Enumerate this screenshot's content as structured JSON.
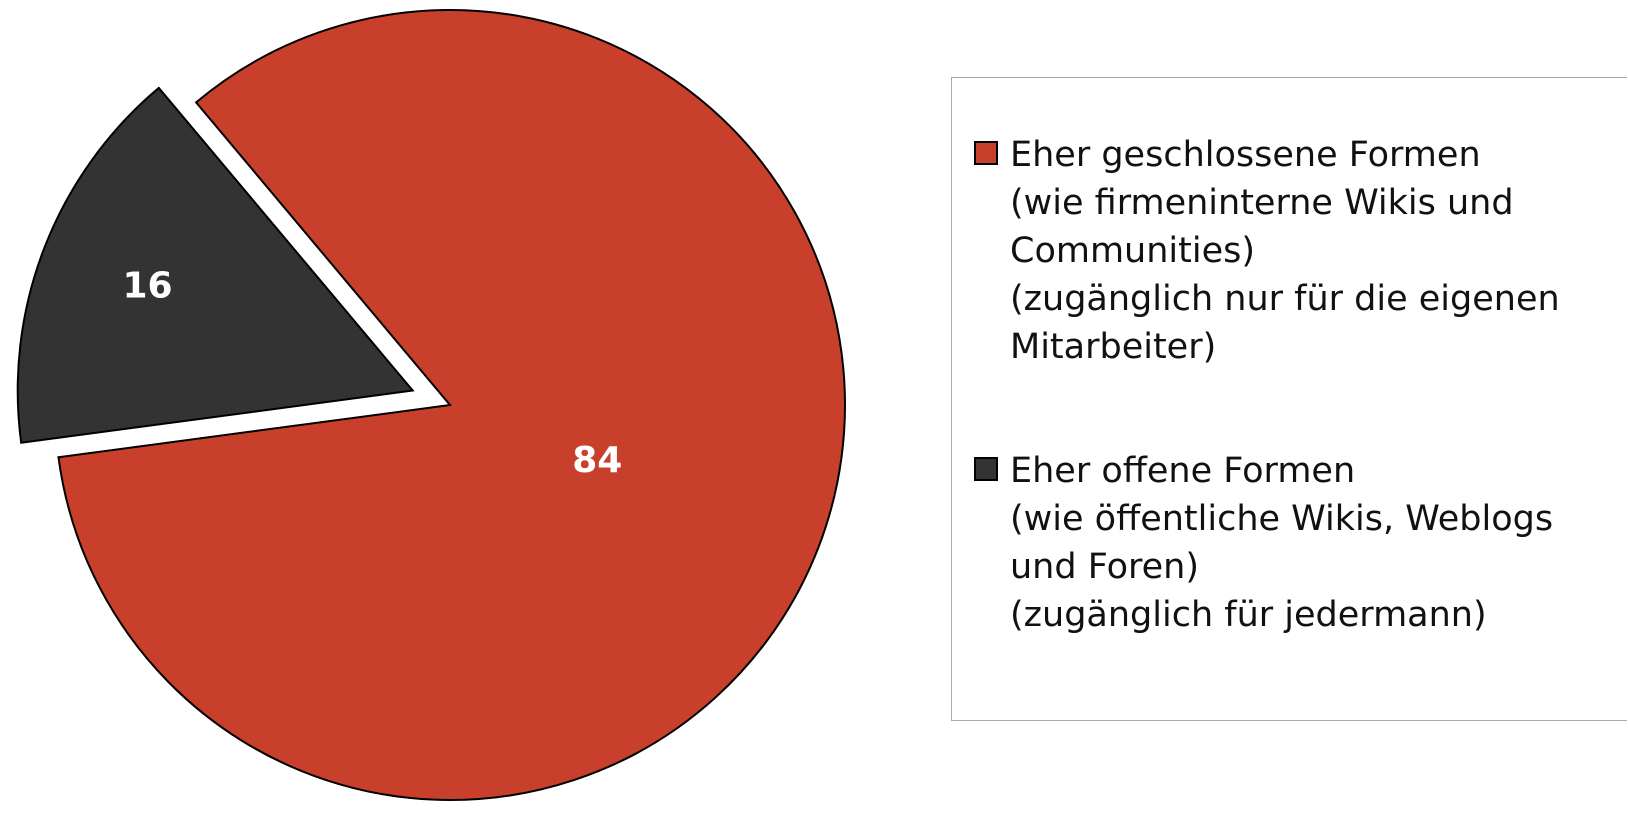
{
  "chart_data": {
    "type": "pie",
    "categories": [
      "Eher geschlossene Formen\n(wie firmeninterne Wikis und Communities)\n(zugänglich nur für die eigenen Mitarbeiter)",
      "Eher offene Formen\n(wie öffentliche Wikis, Weblogs und Foren)\n(zugänglich für jedermann)"
    ],
    "values": [
      84,
      16
    ],
    "colors": [
      "#c8402b",
      "#333333"
    ]
  }
}
